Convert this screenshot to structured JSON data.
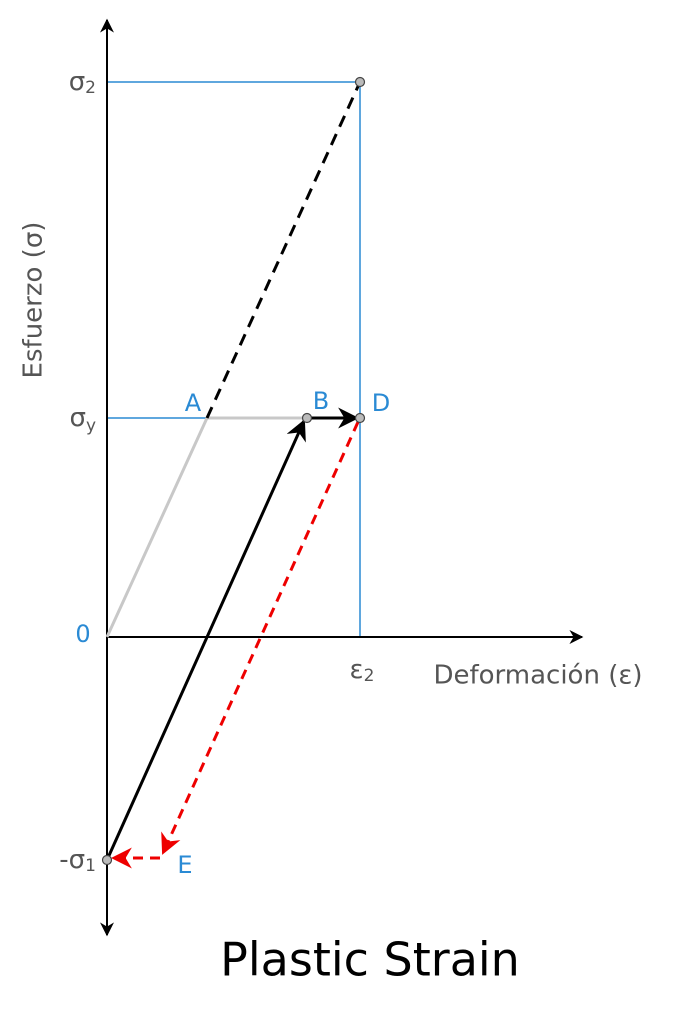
{
  "title": "Plastic Strain",
  "axes": {
    "x_label": "Deformación (ε)",
    "y_label": "Esfuerzo (σ)",
    "origin": "0"
  },
  "ticks": {
    "sigma2": {
      "base": "σ",
      "sub": "2"
    },
    "sigmay": {
      "base": "σ",
      "sub": "y"
    },
    "minus_sigma1": {
      "base": "-σ",
      "sub": "1"
    },
    "eps2": {
      "base": "ε",
      "sub": "2"
    }
  },
  "points": {
    "A": "A",
    "B": "B",
    "D": "D",
    "E": "E"
  }
}
